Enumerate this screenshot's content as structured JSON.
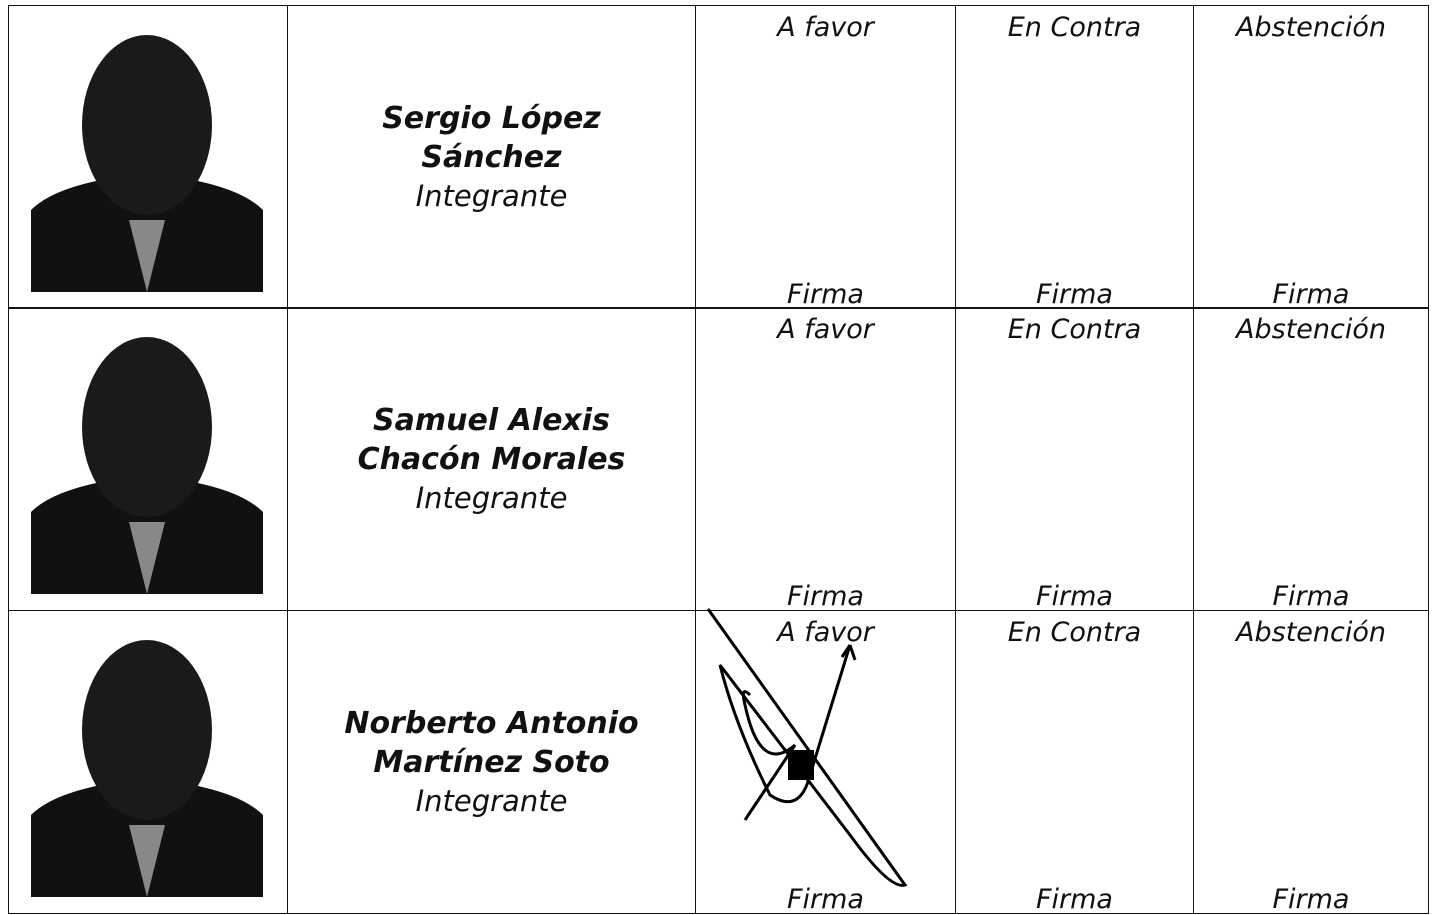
{
  "rows": [
    {
      "name": [
        "Sergio López",
        "Sánchez"
      ],
      "role": "Integrante",
      "votes": [
        {
          "label": "A favor",
          "sign": "Firma"
        },
        {
          "label": "En Contra",
          "sign": "Firma"
        },
        {
          "label": "Abstención",
          "sign": "Firma"
        }
      ]
    },
    {
      "name": [
        "Samuel Alexis",
        "Chacón Morales"
      ],
      "role": "Integrante",
      "votes": [
        {
          "label": "A favor",
          "sign": "Firma"
        },
        {
          "label": "En Contra",
          "sign": "Firma"
        },
        {
          "label": "Abstención",
          "sign": "Firma"
        }
      ]
    },
    {
      "name": [
        "Norberto Antonio",
        "Martínez Soto"
      ],
      "role": "Integrante",
      "votes": [
        {
          "label": "A favor",
          "sign": "Firma"
        },
        {
          "label": "En Contra",
          "sign": "Firma"
        },
        {
          "label": "Abstención",
          "sign": "Firma"
        }
      ]
    }
  ]
}
